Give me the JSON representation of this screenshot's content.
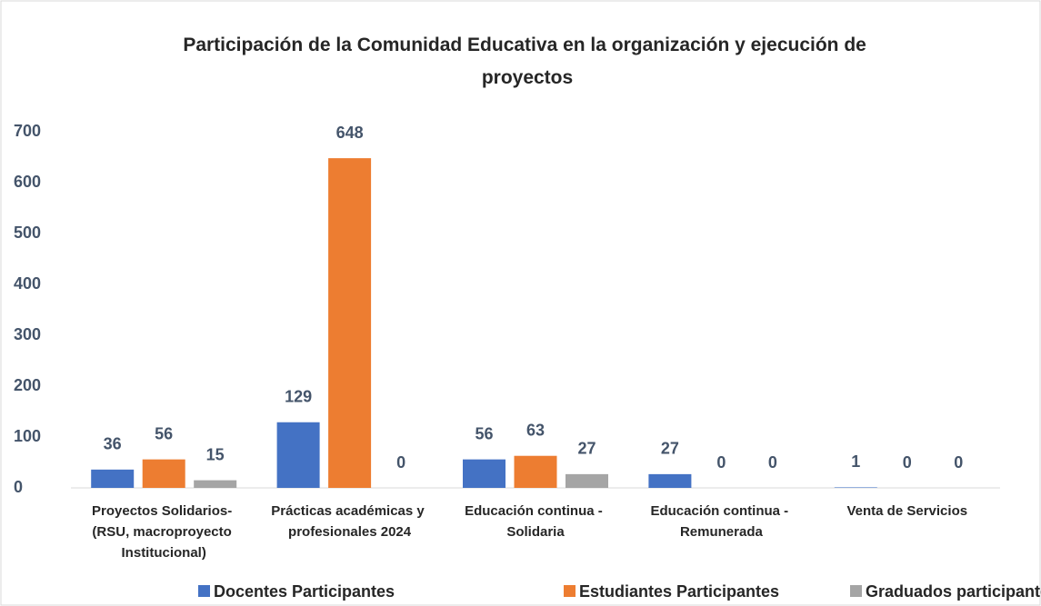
{
  "chart_data": {
    "type": "bar",
    "title": "Participación de la Comunidad Educativa en la organización y ejecución de proyectos",
    "categories": [
      "Proyectos Solidarios-\n(RSU, macroproyecto\nInstitucional)",
      "Prácticas académicas y\nprofesionales 2024",
      "Educación continua -\nSolidaria",
      "Educación continua -\nRemunerada",
      "Venta de Servicios"
    ],
    "series": [
      {
        "name": "Docentes Participantes",
        "color": "#4472c4",
        "values": [
          36,
          129,
          56,
          27,
          1
        ]
      },
      {
        "name": "Estudiantes Participantes",
        "color": "#ed7d31",
        "values": [
          56,
          648,
          63,
          0,
          0
        ]
      },
      {
        "name": "Graduados participantes",
        "color": "#a5a5a5",
        "values": [
          15,
          0,
          27,
          0,
          0
        ]
      }
    ],
    "ylim": [
      0,
      700
    ],
    "yticks": [
      0,
      100,
      200,
      300,
      400,
      500,
      600,
      700
    ],
    "grid": false,
    "legend": "bottom"
  }
}
